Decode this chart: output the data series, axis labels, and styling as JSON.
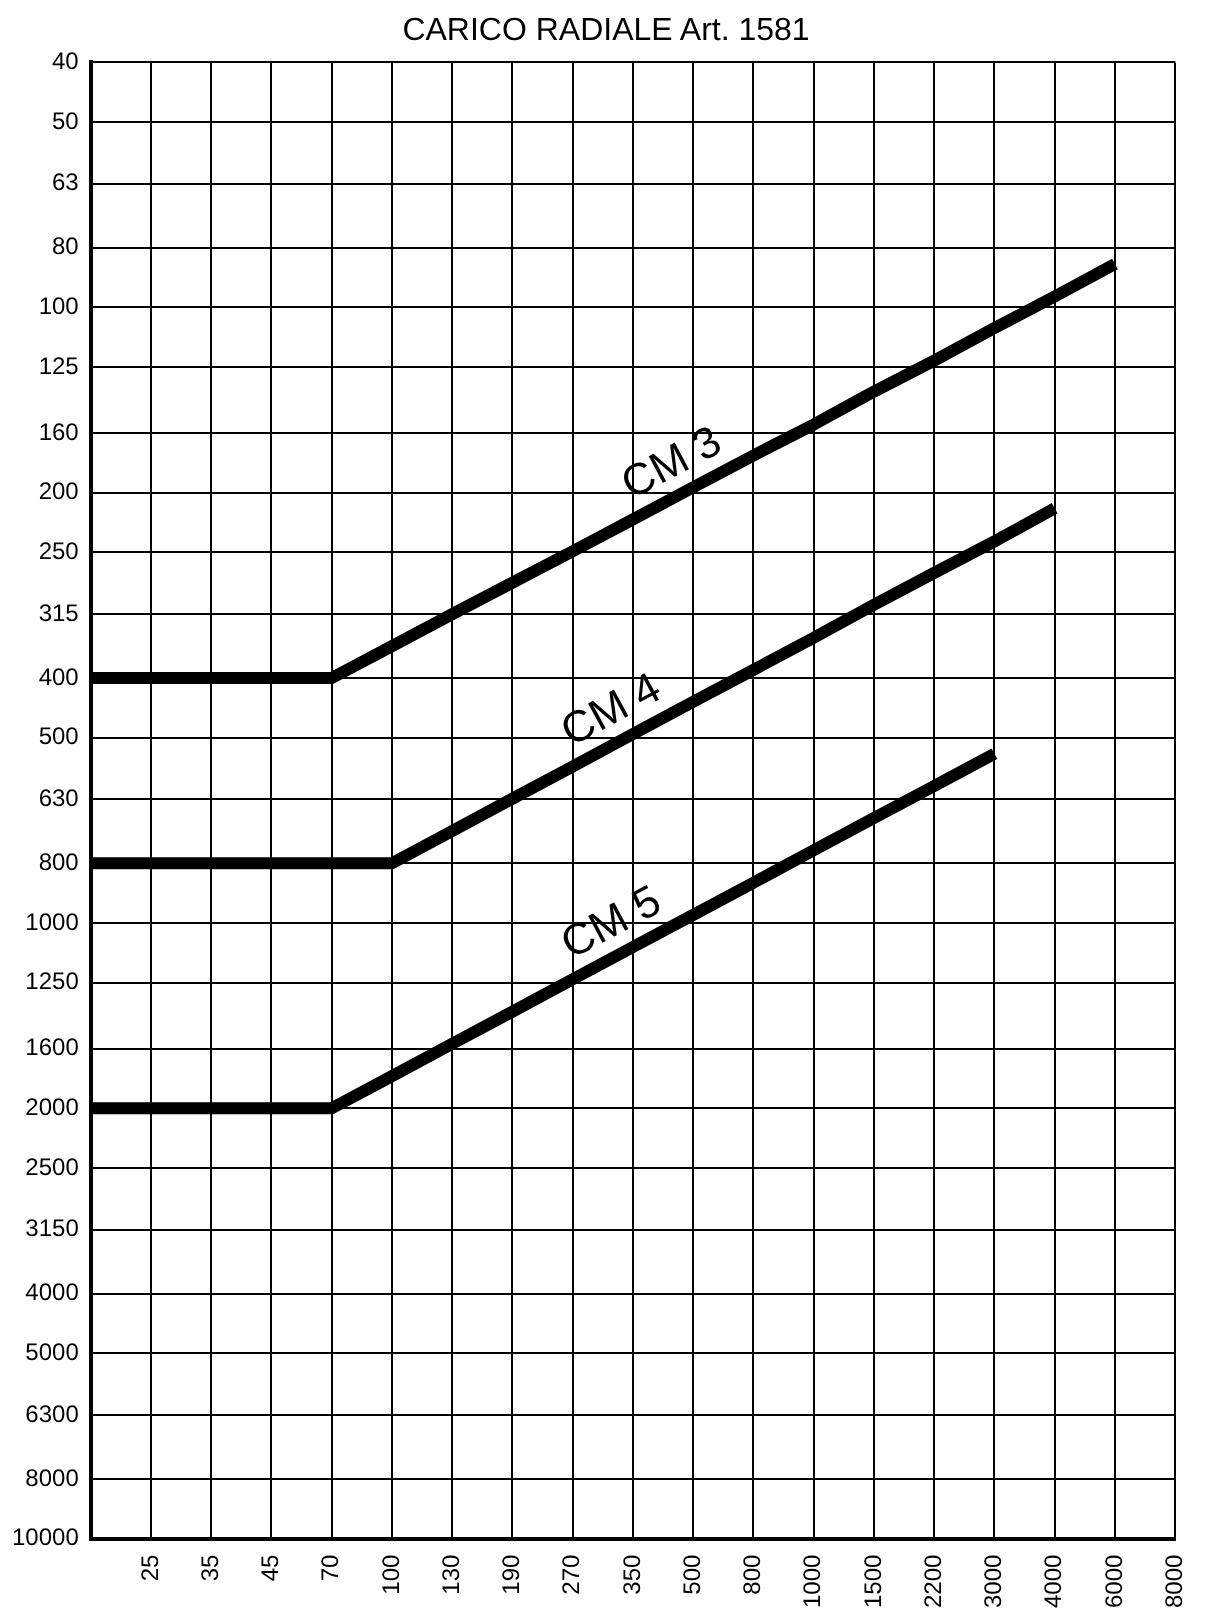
{
  "chart_data": {
    "type": "line",
    "title": "CARICO RADIALE Art. 1581",
    "categories": [
      null,
      "25",
      "35",
      "45",
      "70",
      "100",
      "130",
      "190",
      "270",
      "350",
      "500",
      "800",
      "1000",
      "1500",
      "2200",
      "3000",
      "4000",
      "6000",
      "8000"
    ],
    "series": [
      {
        "name": "CM 3",
        "color": "#000000",
        "values": [
          400,
          400,
          400,
          400,
          400,
          355,
          315,
          280,
          249,
          221,
          196,
          174,
          155,
          137,
          122,
          108,
          96,
          85,
          null
        ]
      },
      {
        "name": "CM 4",
        "color": "#000000",
        "values": [
          800,
          800,
          800,
          800,
          800,
          800,
          709,
          628,
          557,
          493,
          437,
          388,
          344,
          304,
          270,
          240,
          212,
          null,
          null
        ]
      },
      {
        "name": "CM 5",
        "color": "#000000",
        "values": [
          2000,
          2000,
          2000,
          2000,
          2000,
          1773,
          1571,
          1393,
          1234,
          1094,
          970,
          860,
          762,
          675,
          599,
          531,
          null,
          null,
          null
        ]
      }
    ],
    "log": "y",
    "ylim": [
      10000,
      40
    ],
    "yticks": [
      40,
      50,
      63,
      80,
      100,
      125,
      160,
      200,
      250,
      315,
      400,
      500,
      630,
      800,
      1000,
      1250,
      1600,
      2000,
      2500,
      3150,
      4000,
      5000,
      6300,
      8000,
      10000
    ],
    "grid": true,
    "marker": "none",
    "line_style": "solid"
  }
}
